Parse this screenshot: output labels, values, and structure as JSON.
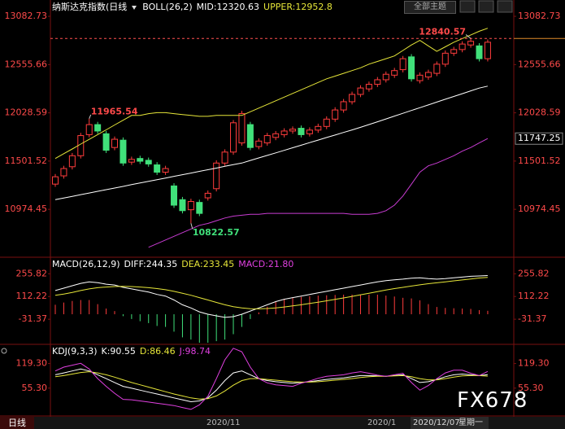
{
  "header": {
    "title": "纳斯达克指数(日线",
    "theme_button": "全部主题"
  },
  "footer": {
    "period": "日线",
    "dates": [
      "2020/11",
      "2020/1",
      "2020/12/07",
      "星期一"
    ],
    "watermark": "FX678"
  },
  "chart_data": [
    {
      "type": "candlestick",
      "indicator": "BOLL(26,2)",
      "up_color": "#ff3c3c",
      "down_color": "#40e07a",
      "open": [
        11250,
        11340,
        11440,
        11560,
        11790,
        11900,
        11800,
        11650,
        11730,
        11490,
        11530,
        11510,
        11460,
        11380,
        11230,
        11080,
        10970,
        11050,
        11100,
        11200,
        11480,
        11600,
        11700,
        11900,
        11660,
        11700,
        11760,
        11790,
        11830,
        11860,
        11800,
        11840,
        11880,
        11960,
        12060,
        12150,
        12230,
        12290,
        12340,
        12390,
        12440,
        12500,
        12640,
        12380,
        12420,
        12460,
        12560,
        12680,
        12720,
        12770,
        12760,
        12620
      ],
      "high": [
        11360,
        11450,
        11590,
        11810,
        11965.54,
        11930,
        11830,
        11770,
        11760,
        11550,
        11560,
        11540,
        11490,
        11450,
        11260,
        11110,
        11090,
        11080,
        11180,
        11510,
        11630,
        11950,
        12050,
        11930,
        11750,
        11810,
        11830,
        11860,
        11880,
        11890,
        11870,
        11910,
        11990,
        12090,
        12180,
        12260,
        12330,
        12370,
        12420,
        12480,
        12520,
        12650,
        12670,
        12470,
        12500,
        12590,
        12710,
        12750,
        12810,
        12840.57,
        12790,
        12830
      ],
      "low": [
        11220,
        11310,
        11410,
        11530,
        11760,
        11800,
        11590,
        11620,
        11450,
        11460,
        11470,
        11440,
        11350,
        11350,
        10990,
        10930,
        10822.57,
        10900,
        11070,
        11170,
        11450,
        11570,
        11670,
        11620,
        11630,
        11670,
        11730,
        11760,
        11800,
        11760,
        11770,
        11810,
        11850,
        11930,
        12030,
        12120,
        12200,
        12260,
        12310,
        12360,
        12410,
        12470,
        12370,
        12350,
        12390,
        12430,
        12530,
        12650,
        12690,
        12740,
        12590,
        12590
      ],
      "close": [
        11330,
        11420,
        11560,
        11780,
        11900,
        11830,
        11620,
        11740,
        11480,
        11520,
        11500,
        11470,
        11380,
        11420,
        11020,
        10960,
        11060,
        10930,
        11150,
        11480,
        11600,
        11920,
        12020,
        11650,
        11720,
        11780,
        11800,
        11830,
        11850,
        11790,
        11840,
        11880,
        11960,
        12060,
        12150,
        12230,
        12300,
        12340,
        12390,
        12450,
        12490,
        12620,
        12400,
        12440,
        12470,
        12560,
        12680,
        12720,
        12780,
        12810,
        12620,
        12800
      ],
      "series": [
        {
          "name": "MID:12320.63",
          "color": "#ffffff",
          "values": [
            11080,
            11098,
            11116,
            11135,
            11153,
            11171,
            11189,
            11207,
            11225,
            11244,
            11262,
            11280,
            11298,
            11316,
            11335,
            11353,
            11371,
            11389,
            11407,
            11425,
            11444,
            11462,
            11480,
            11508,
            11536,
            11564,
            11591,
            11619,
            11647,
            11675,
            11703,
            11731,
            11759,
            11786,
            11814,
            11842,
            11870,
            11901,
            11931,
            11962,
            11993,
            12023,
            12054,
            12085,
            12115,
            12146,
            12177,
            12207,
            12238,
            12269,
            12299,
            12320.63
          ]
        },
        {
          "name": "UPPER:12952.8",
          "color": "#e6e639",
          "values": [
            11530,
            11582,
            11634,
            11687,
            11739,
            11791,
            11843,
            11896,
            11948,
            12000,
            12000,
            12020,
            12030,
            12030,
            12020,
            12010,
            12000,
            11990,
            11990,
            12000,
            12000,
            12000,
            12000,
            12040,
            12080,
            12120,
            12160,
            12200,
            12240,
            12280,
            12320,
            12360,
            12400,
            12430,
            12460,
            12490,
            12520,
            12560,
            12590,
            12620,
            12650,
            12710,
            12770,
            12820,
            12760,
            12700,
            12750,
            12800,
            12840,
            12880,
            12920,
            12952.8
          ]
        },
        {
          "color": "#c83cd2",
          "values": [
            null,
            null,
            null,
            null,
            null,
            null,
            null,
            null,
            null,
            null,
            null,
            10560,
            10600,
            10640,
            10680,
            10720,
            10760,
            10800,
            10820,
            10850,
            10880,
            10900,
            10910,
            10920,
            10920,
            10930,
            10930,
            10930,
            10930,
            10930,
            10930,
            10930,
            10930,
            10930,
            10930,
            10920,
            10920,
            10920,
            10930,
            10960,
            11020,
            11120,
            11250,
            11380,
            11450,
            11480,
            11520,
            11560,
            11610,
            11650,
            11700,
            11747.25
          ]
        }
      ],
      "ylim": [
        10460,
        13190
      ],
      "yticks": [
        13082.73,
        12555.66,
        12028.59,
        11501.52,
        10974.45
      ]
    },
    {
      "type": "combo",
      "indicator": "MACD(26,12,9)",
      "series": [
        {
          "name": "DIFF:244.35",
          "color": "#ffffff",
          "values": [
            150,
            165,
            180,
            195,
            205,
            200,
            190,
            185,
            170,
            160,
            150,
            140,
            125,
            115,
            90,
            60,
            40,
            15,
            0,
            -10,
            -20,
            -15,
            0,
            20,
            40,
            60,
            80,
            95,
            105,
            115,
            125,
            135,
            145,
            155,
            165,
            175,
            185,
            195,
            205,
            212,
            218,
            222,
            228,
            230,
            225,
            222,
            225,
            230,
            235,
            240,
            242,
            244.35
          ]
        },
        {
          "name": "DEA:233.45",
          "color": "#e6e639",
          "values": [
            120,
            128,
            138,
            150,
            160,
            168,
            172,
            175,
            176,
            175,
            172,
            168,
            162,
            155,
            145,
            133,
            120,
            105,
            90,
            75,
            60,
            48,
            40,
            35,
            34,
            36,
            40,
            46,
            53,
            60,
            68,
            76,
            85,
            94,
            103,
            113,
            123,
            133,
            143,
            153,
            162,
            170,
            178,
            186,
            193,
            199,
            205,
            211,
            217,
            223,
            229,
            233.45
          ]
        },
        {
          "name": "MACD:21.80",
          "type": "bar",
          "color": "#ff3c3c",
          "negative_color": "#40e07a",
          "label_color": "#e040e0",
          "values": [
            60,
            74,
            84,
            90,
            90,
            64,
            36,
            20,
            -12,
            -30,
            -44,
            -56,
            -74,
            -80,
            -110,
            -146,
            -160,
            -180,
            -180,
            -170,
            -160,
            -126,
            -80,
            -30,
            12,
            48,
            80,
            98,
            104,
            110,
            114,
            118,
            120,
            122,
            124,
            124,
            124,
            124,
            124,
            118,
            112,
            104,
            100,
            88,
            64,
            46,
            40,
            38,
            36,
            34,
            26,
            21.8
          ]
        }
      ],
      "ylim": [
        -185,
        350
      ],
      "yticks": [
        255.82,
        112.22,
        -31.37
      ]
    },
    {
      "type": "line",
      "indicator": "KDJ(9,3,3)",
      "series": [
        {
          "name": "K:90.55",
          "color": "#ffffff",
          "values": [
            90,
            95,
            100,
            105,
            100,
            90,
            80,
            70,
            60,
            55,
            50,
            45,
            40,
            35,
            30,
            25,
            20,
            22,
            30,
            50,
            75,
            95,
            100,
            90,
            80,
            75,
            72,
            70,
            68,
            70,
            72,
            75,
            78,
            80,
            82,
            85,
            88,
            88,
            87,
            86,
            88,
            90,
            80,
            70,
            72,
            78,
            85,
            90,
            92,
            90,
            88,
            90.55
          ]
        },
        {
          "name": "D:86.46",
          "color": "#e6e639",
          "values": [
            85,
            88,
            92,
            96,
            98,
            95,
            90,
            84,
            77,
            70,
            64,
            58,
            52,
            46,
            40,
            35,
            30,
            27,
            28,
            35,
            48,
            63,
            75,
            80,
            80,
            78,
            76,
            74,
            72,
            71,
            71,
            72,
            74,
            76,
            78,
            80,
            83,
            85,
            86,
            86,
            87,
            88,
            85,
            80,
            77,
            77,
            80,
            84,
            87,
            88,
            88,
            86.46
          ]
        },
        {
          "name": "J:98.74",
          "color": "#e040e0",
          "values": [
            100,
            110,
            115,
            120,
            105,
            80,
            60,
            42,
            26,
            25,
            22,
            19,
            16,
            13,
            10,
            5,
            0,
            12,
            34,
            80,
            129,
            159,
            150,
            110,
            80,
            69,
            64,
            62,
            60,
            68,
            74,
            81,
            86,
            88,
            90,
            95,
            98,
            94,
            89,
            86,
            90,
            94,
            70,
            50,
            62,
            80,
            95,
            102,
            102,
            94,
            88,
            98.74
          ]
        }
      ],
      "ylim": [
        -15,
        165
      ],
      "yticks": [
        {
          "value": 119.3,
          "label": "119.30"
        },
        {
          "value": 55.3,
          "label": "55.30"
        }
      ]
    }
  ]
}
